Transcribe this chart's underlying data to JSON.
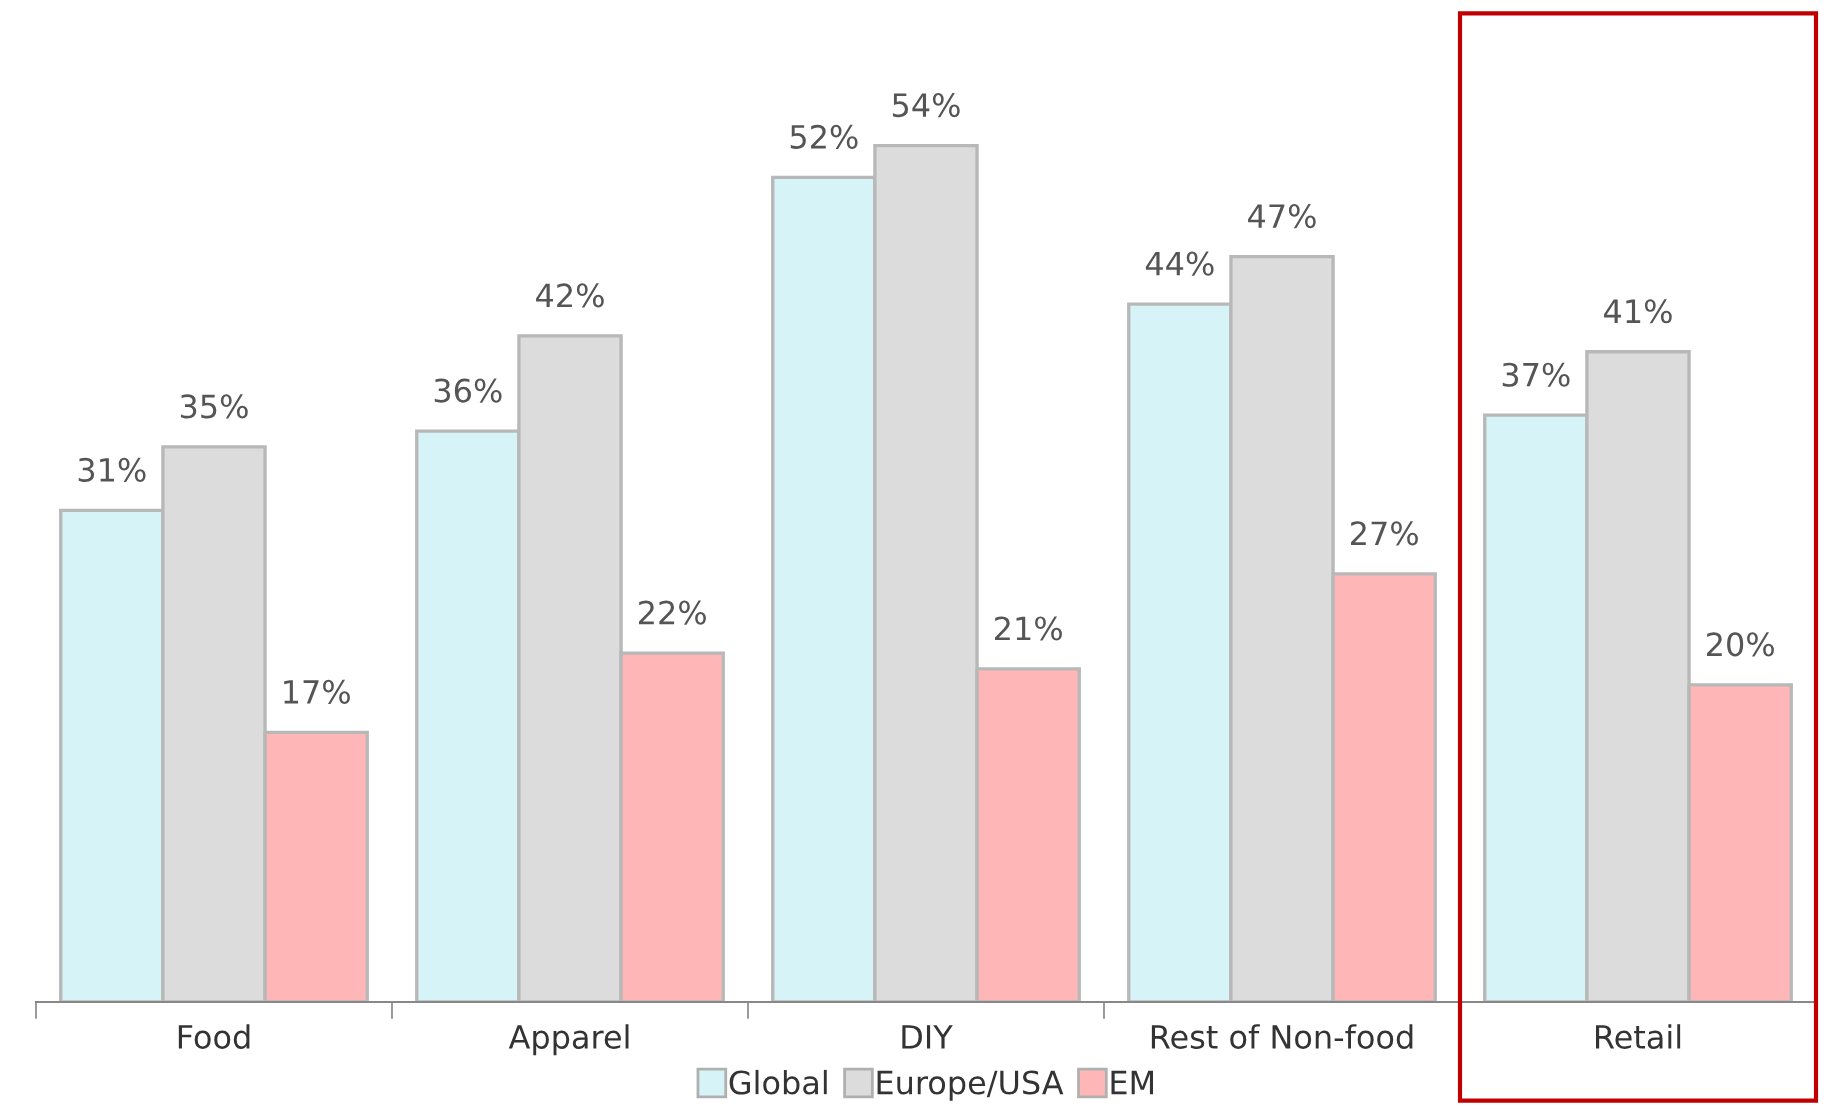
{
  "chart_data": {
    "type": "bar",
    "categories": [
      "Food",
      "Apparel",
      "DIY",
      "Rest of Non-food",
      "Retail"
    ],
    "series": [
      {
        "name": "Global",
        "color": "#d6f4f7",
        "values": [
          31,
          36,
          52,
          44,
          37
        ],
        "value_labels": [
          "31%",
          "36%",
          "52%",
          "44%",
          "37%"
        ]
      },
      {
        "name": "Europe/USA",
        "color": "#dcdcdc",
        "values": [
          35,
          42,
          54,
          47,
          41
        ],
        "value_labels": [
          "35%",
          "42%",
          "54%",
          "47%",
          "41%"
        ]
      },
      {
        "name": "EM",
        "color": "#ffb6b6",
        "values": [
          17,
          22,
          21,
          27,
          20
        ],
        "value_labels": [
          "17%",
          "22%",
          "21%",
          "27%",
          "20%"
        ]
      }
    ],
    "tick_labels": "x",
    "grid": false,
    "legend": "bottom"
  }
}
